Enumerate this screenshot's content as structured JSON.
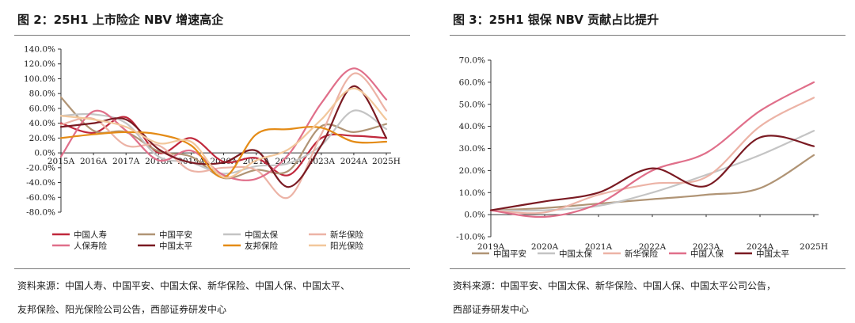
{
  "left": {
    "title": "图 2：25H1 上市险企 NBV 增速高企",
    "source_line1": "资料来源：中国人寿、中国平安、中国太保、新华保险、中国人保、中国太平、",
    "source_line2": "友邦保险、阳光保险公司公告，西部证券研发中心"
  },
  "right": {
    "title": "图 3：25H1 银保 NBV 贡献占比提升",
    "source_line1": "资料来源：中国平安、中国太保、新华保险、中国人保、中国太平公司公告，",
    "source_line2": "西部证券研发中心"
  },
  "chart_data": [
    {
      "type": "line",
      "title": "25H1 上市险企 NBV 增速高企",
      "categories": [
        "2015A",
        "2016A",
        "2017A",
        "2018A",
        "2019A",
        "2020A",
        "2021A",
        "2022A",
        "2023A",
        "2024A",
        "2025H"
      ],
      "ylim": [
        -80,
        140
      ],
      "yticks": [
        "140.0%",
        "120.0%",
        "100.0%",
        "80.0%",
        "60.0%",
        "40.0%",
        "20.0%",
        "0.0%",
        "-20.0%",
        "-40.0%",
        "-60.0%",
        "-80.0%"
      ],
      "ytick_values": [
        140,
        120,
        100,
        80,
        60,
        40,
        20,
        0,
        -20,
        -40,
        -60,
        -80
      ],
      "series": [
        {
          "name": "中国人寿",
          "color": "#c0283c",
          "values": [
            40,
            27,
            48,
            0,
            20,
            -12,
            -7,
            -30,
            20,
            23,
            20
          ]
        },
        {
          "name": "中国平安",
          "color": "#b09475",
          "values": [
            75,
            30,
            28,
            2,
            -5,
            -34,
            -23,
            -24,
            36,
            28,
            39
          ]
        },
        {
          "name": "中国太保",
          "color": "#c4c4c4",
          "values": [
            50,
            52,
            40,
            -5,
            -13,
            -28,
            -18,
            -14,
            10,
            57,
            32
          ]
        },
        {
          "name": "新华保险",
          "color": "#ecb3a6",
          "values": [
            38,
            46,
            10,
            10,
            -24,
            -20,
            -23,
            -60,
            25,
            107,
            57
          ]
        },
        {
          "name": "人保寿险",
          "color": "#e06f8a",
          "values": [
            -5,
            56,
            30,
            -10,
            3,
            -30,
            -35,
            -2,
            67,
            114,
            72
          ]
        },
        {
          "name": "中国太平",
          "color": "#7a1a22",
          "values": [
            35,
            40,
            45,
            5,
            -13,
            -13,
            3,
            -46,
            10,
            90,
            20
          ]
        },
        {
          "name": "友邦保险",
          "color": "#e48b16",
          "values": [
            20,
            25,
            28,
            25,
            10,
            -33,
            25,
            32,
            34,
            15,
            15
          ]
        },
        {
          "name": "阳光保险",
          "color": "#f2c79b",
          "values": [
            50,
            45,
            35,
            13,
            15,
            -33,
            -10,
            5,
            45,
            87,
            45
          ]
        }
      ]
    },
    {
      "type": "line",
      "title": "25H1 银保 NBV 贡献占比提升",
      "categories": [
        "2019A",
        "2020A",
        "2021A",
        "2022A",
        "2023A",
        "2024A",
        "2025H"
      ],
      "ylim": [
        -10,
        70
      ],
      "yticks": [
        "70.0%",
        "60.0%",
        "50.0%",
        "40.0%",
        "30.0%",
        "20.0%",
        "10.0%",
        "0.0%",
        "-10.0%"
      ],
      "ytick_values": [
        70,
        60,
        50,
        40,
        30,
        20,
        10,
        0,
        -10
      ],
      "series": [
        {
          "name": "中国平安",
          "color": "#b09475",
          "values": [
            2,
            3,
            5,
            7,
            9,
            12,
            27
          ]
        },
        {
          "name": "中国太保",
          "color": "#c4c4c4",
          "values": [
            2,
            2,
            4,
            10,
            18,
            27,
            38
          ]
        },
        {
          "name": "新华保险",
          "color": "#ecb3a6",
          "values": [
            2,
            1,
            9,
            14,
            17,
            40,
            53
          ]
        },
        {
          "name": "中国人保",
          "color": "#e06f8a",
          "values": [
            2,
            -1,
            5,
            20,
            28,
            47,
            60
          ]
        },
        {
          "name": "中国太平",
          "color": "#7a1a22",
          "values": [
            2,
            6,
            10,
            21,
            13,
            35,
            31
          ]
        }
      ]
    }
  ]
}
